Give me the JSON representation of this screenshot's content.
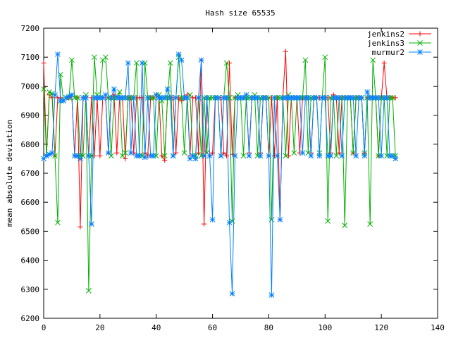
{
  "chart_data": {
    "type": "line",
    "title": "Hash size 65535",
    "xlabel": "",
    "ylabel": "mean absolute deviation",
    "xlim": [
      0,
      140
    ],
    "ylim": [
      6200,
      7200
    ],
    "xticks": [
      0,
      20,
      40,
      60,
      80,
      100,
      120,
      140
    ],
    "yticks": [
      6200,
      6300,
      6400,
      6500,
      6600,
      6700,
      6800,
      6900,
      7000,
      7100,
      7200
    ],
    "grid": false,
    "legend_position": "top-right",
    "x": [
      0,
      1,
      2,
      3,
      4,
      5,
      6,
      7,
      8,
      9,
      10,
      11,
      12,
      13,
      14,
      15,
      16,
      17,
      18,
      19,
      20,
      21,
      22,
      23,
      24,
      25,
      26,
      27,
      28,
      29,
      30,
      31,
      32,
      33,
      34,
      35,
      36,
      37,
      38,
      39,
      40,
      41,
      42,
      43,
      44,
      45,
      46,
      47,
      48,
      49,
      50,
      51,
      52,
      53,
      54,
      55,
      56,
      57,
      58,
      59,
      60,
      61,
      62,
      63,
      64,
      65,
      66,
      67,
      68,
      69,
      70,
      71,
      72,
      73,
      74,
      75,
      76,
      77,
      78,
      79,
      80,
      81,
      82,
      83,
      84,
      85,
      86,
      87,
      88,
      89,
      90,
      91,
      92,
      93,
      94,
      95,
      96,
      97,
      98,
      99,
      100,
      101,
      102,
      103,
      104,
      105,
      106,
      107,
      108,
      109,
      110,
      111,
      112,
      113,
      114,
      115,
      116,
      117,
      118,
      119,
      120,
      121,
      122,
      123,
      124,
      125
    ],
    "series": [
      {
        "name": "jenkins2",
        "color": "#ff0000",
        "marker": "plus",
        "values": [
          7080,
          6760,
          6970,
          6960,
          6760,
          6960,
          6960,
          6950,
          6960,
          6960,
          6965,
          6760,
          6960,
          6515,
          6960,
          6960,
          6760,
          6960,
          6760,
          6960,
          6760,
          6960,
          6960,
          6770,
          6960,
          6970,
          6770,
          6960,
          6960,
          6750,
          6960,
          6960,
          6770,
          6960,
          6960,
          6960,
          6770,
          6760,
          6960,
          6960,
          6970,
          6960,
          6760,
          6745,
          6960,
          6960,
          6960,
          6770,
          6960,
          6950,
          6960,
          6970,
          6760,
          6960,
          6960,
          6770,
          7090,
          6525,
          6960,
          6760,
          6770,
          6960,
          6960,
          6960,
          6770,
          6760,
          7080,
          6765,
          6960,
          6960,
          6960,
          6960,
          6960,
          6770,
          6960,
          6960,
          6960,
          6770,
          6960,
          6960,
          6760,
          6960,
          6760,
          6960,
          6540,
          6960,
          7120,
          6760,
          6960,
          6960,
          6960,
          6770,
          6960,
          6960,
          6960,
          6770,
          6960,
          6960,
          6960,
          6960,
          6960,
          6960,
          6770,
          6970,
          6960,
          6770,
          6960,
          6960,
          6960,
          6960,
          6770,
          6960,
          6960,
          6960,
          6770,
          6960,
          6960,
          6960,
          6960,
          6760,
          6960,
          7080,
          6960,
          6960,
          6960,
          6960
        ]
      },
      {
        "name": "jenkins3",
        "color": "#00b000",
        "marker": "cross",
        "values": [
          6990,
          6760,
          6980,
          6975,
          6760,
          6530,
          7040,
          6950,
          6960,
          6960,
          7090,
          6960,
          6960,
          6760,
          6760,
          6970,
          6295,
          6760,
          7100,
          6970,
          6960,
          7090,
          7100,
          6960,
          6760,
          6960,
          6960,
          6980,
          6760,
          6770,
          6960,
          6960,
          6960,
          7080,
          6760,
          6760,
          7080,
          6960,
          6960,
          6960,
          6760,
          6970,
          6950,
          6760,
          6960,
          7080,
          6760,
          6960,
          7100,
          6960,
          6770,
          6960,
          6970,
          6760,
          6760,
          6960,
          6760,
          6960,
          6770,
          6960,
          6960,
          6960,
          6960,
          6760,
          6960,
          7080,
          6960,
          6535,
          6960,
          6970,
          6960,
          6760,
          6960,
          6960,
          6960,
          6970,
          6760,
          6960,
          6960,
          6960,
          6960,
          6540,
          6960,
          6960,
          6960,
          6960,
          6760,
          6970,
          6960,
          6770,
          6960,
          6960,
          6960,
          7090,
          6770,
          6960,
          6960,
          6960,
          6770,
          6960,
          7100,
          6535,
          6960,
          6960,
          6760,
          6960,
          6960,
          6520,
          6960,
          6960,
          6770,
          6960,
          6960,
          6960,
          6770,
          6960,
          6525,
          7090,
          6960,
          6760,
          6960,
          6960,
          6760,
          6960,
          6960,
          6760
        ]
      },
      {
        "name": "murmur2",
        "color": "#0080ff",
        "marker": "star",
        "values": [
          6750,
          6760,
          6765,
          6770,
          6970,
          7110,
          6950,
          6950,
          6960,
          6965,
          6970,
          6760,
          6760,
          6750,
          6960,
          6960,
          6760,
          6525,
          6960,
          6960,
          6960,
          6960,
          6970,
          6770,
          6960,
          6990,
          6960,
          6960,
          6960,
          6960,
          7080,
          6770,
          6960,
          6760,
          6760,
          7080,
          6755,
          6960,
          6760,
          6760,
          6970,
          6960,
          6960,
          6960,
          6990,
          6960,
          6760,
          6960,
          7110,
          7090,
          6960,
          6960,
          6750,
          6760,
          6750,
          6960,
          7090,
          6760,
          6960,
          6760,
          6540,
          6960,
          6960,
          6760,
          6960,
          6960,
          6530,
          6285,
          6760,
          6960,
          6960,
          6960,
          6970,
          6760,
          6960,
          6960,
          6960,
          6760,
          6960,
          6960,
          6760,
          6280,
          6960,
          6760,
          6540,
          6960,
          6960,
          6960,
          6960,
          6960,
          6960,
          6960,
          6770,
          6960,
          6960,
          6760,
          6960,
          6960,
          6760,
          6960,
          6960,
          6760,
          6760,
          6960,
          6960,
          6960,
          6760,
          6960,
          6960,
          6960,
          6960,
          6760,
          6960,
          6960,
          6760,
          6980,
          6960,
          6960,
          6960,
          6960,
          6760,
          6960,
          6960,
          6760,
          6760,
          6750
        ]
      }
    ]
  }
}
